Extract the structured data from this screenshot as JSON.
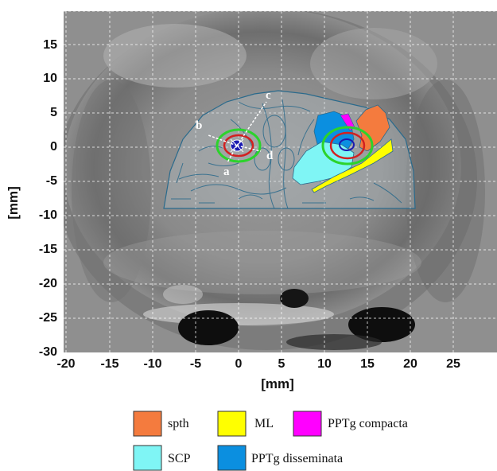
{
  "axes": {
    "x_label": "[mm]",
    "y_label": "[mm]",
    "x_ticks": [
      "-20",
      "-15",
      "-10",
      "-5",
      "0",
      "5",
      "10",
      "15",
      "20",
      "25"
    ],
    "y_ticks": [
      "15",
      "10",
      "5",
      "0",
      "-5",
      "-10",
      "-15",
      "-20",
      "-25",
      "-30"
    ]
  },
  "annotations": {
    "a": "a",
    "b": "b",
    "c": "c",
    "d": "d"
  },
  "legend": [
    {
      "label": "spth",
      "color": "#f47b3e"
    },
    {
      "label": "ML",
      "color": "#ffff00"
    },
    {
      "label": "PPTg compacta",
      "color": "#ff00ff"
    },
    {
      "label": "SCP",
      "color": "#7ff5f5"
    },
    {
      "label": "PPTg disseminata",
      "color": "#0b8fe0"
    }
  ],
  "colors": {
    "target_outer": "#2cd32c",
    "target_middle": "#d22020",
    "target_inner": "#1a1ab0",
    "atlas_outline": "#2a6a8c"
  }
}
